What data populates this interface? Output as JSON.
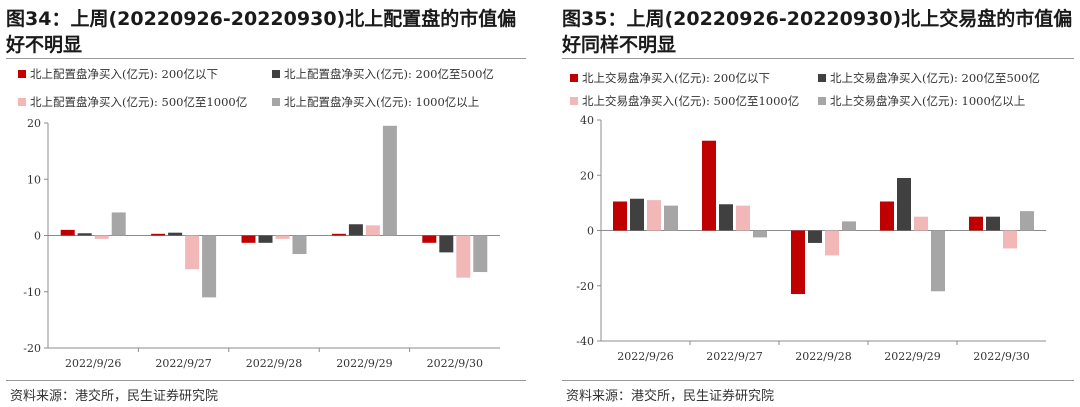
{
  "source_text": "资料来源：港交所，民生证券研究院",
  "charts": [
    {
      "title": "图34：上周(20220926-20220930)北上配置盘的市值偏好不明显",
      "legend": [
        "北上配置盘净买入(亿元): 200亿以下",
        "北上配置盘净买入(亿元): 200亿至500亿",
        "北上配置盘净买入(亿元): 500亿至1000亿",
        "北上配置盘净买入(亿元): 1000亿以上"
      ]
    },
    {
      "title": "图35：上周(20220926-20220930)北上交易盘的市值偏好同样不明显",
      "legend": [
        "北上交易盘净买入(亿元): 200亿以下",
        "北上交易盘净买入(亿元): 200亿至500亿",
        "北上交易盘净买入(亿元): 500亿至1000亿",
        "北上交易盘净买入(亿元): 1000亿以上"
      ]
    }
  ],
  "chart_data": [
    {
      "type": "bar",
      "title": "图34：上周(20220926-20220930)北上配置盘的市值偏好不明显",
      "categories": [
        "2022/9/26",
        "2022/9/27",
        "2022/9/28",
        "2022/9/29",
        "2022/9/30"
      ],
      "ylim": [
        -20,
        20
      ],
      "yticks": [
        -20,
        -10,
        0,
        10,
        20
      ],
      "series": [
        {
          "name": "北上配置盘净买入(亿元): 200亿以下",
          "color": "#c00000",
          "values": [
            1.0,
            0.3,
            -1.3,
            0.3,
            -1.3
          ]
        },
        {
          "name": "北上配置盘净买入(亿元): 200亿至500亿",
          "color": "#404040",
          "values": [
            0.4,
            0.5,
            -1.3,
            2.0,
            -3.0
          ]
        },
        {
          "name": "北上配置盘净买入(亿元): 500亿至1000亿",
          "color": "#f2b8b8",
          "values": [
            -0.6,
            -6.0,
            -0.6,
            1.8,
            -7.5
          ]
        },
        {
          "name": "北上配置盘净买入(亿元): 1000亿以上",
          "color": "#a6a6a6",
          "values": [
            4.1,
            -11.0,
            -3.3,
            19.5,
            -6.5
          ]
        }
      ]
    },
    {
      "type": "bar",
      "title": "图35：上周(20220926-20220930)北上交易盘的市值偏好同样不明显",
      "categories": [
        "2022/9/26",
        "2022/9/27",
        "2022/9/28",
        "2022/9/29",
        "2022/9/30"
      ],
      "ylim": [
        -40,
        40
      ],
      "yticks": [
        -40,
        -20,
        0,
        20,
        40
      ],
      "series": [
        {
          "name": "北上交易盘净买入(亿元): 200亿以下",
          "color": "#c00000",
          "values": [
            10.5,
            32.5,
            -23.0,
            10.5,
            5.0
          ]
        },
        {
          "name": "北上交易盘净买入(亿元): 200亿至500亿",
          "color": "#404040",
          "values": [
            11.5,
            9.5,
            -4.5,
            19.0,
            5.0
          ]
        },
        {
          "name": "北上交易盘净买入(亿元): 500亿至1000亿",
          "color": "#f2b8b8",
          "values": [
            11.0,
            9.0,
            -9.0,
            5.0,
            -6.5
          ]
        },
        {
          "name": "北上交易盘净买入(亿元): 1000亿以上",
          "color": "#a6a6a6",
          "values": [
            9.0,
            -2.5,
            3.3,
            -22.0,
            7.0
          ]
        }
      ]
    }
  ]
}
